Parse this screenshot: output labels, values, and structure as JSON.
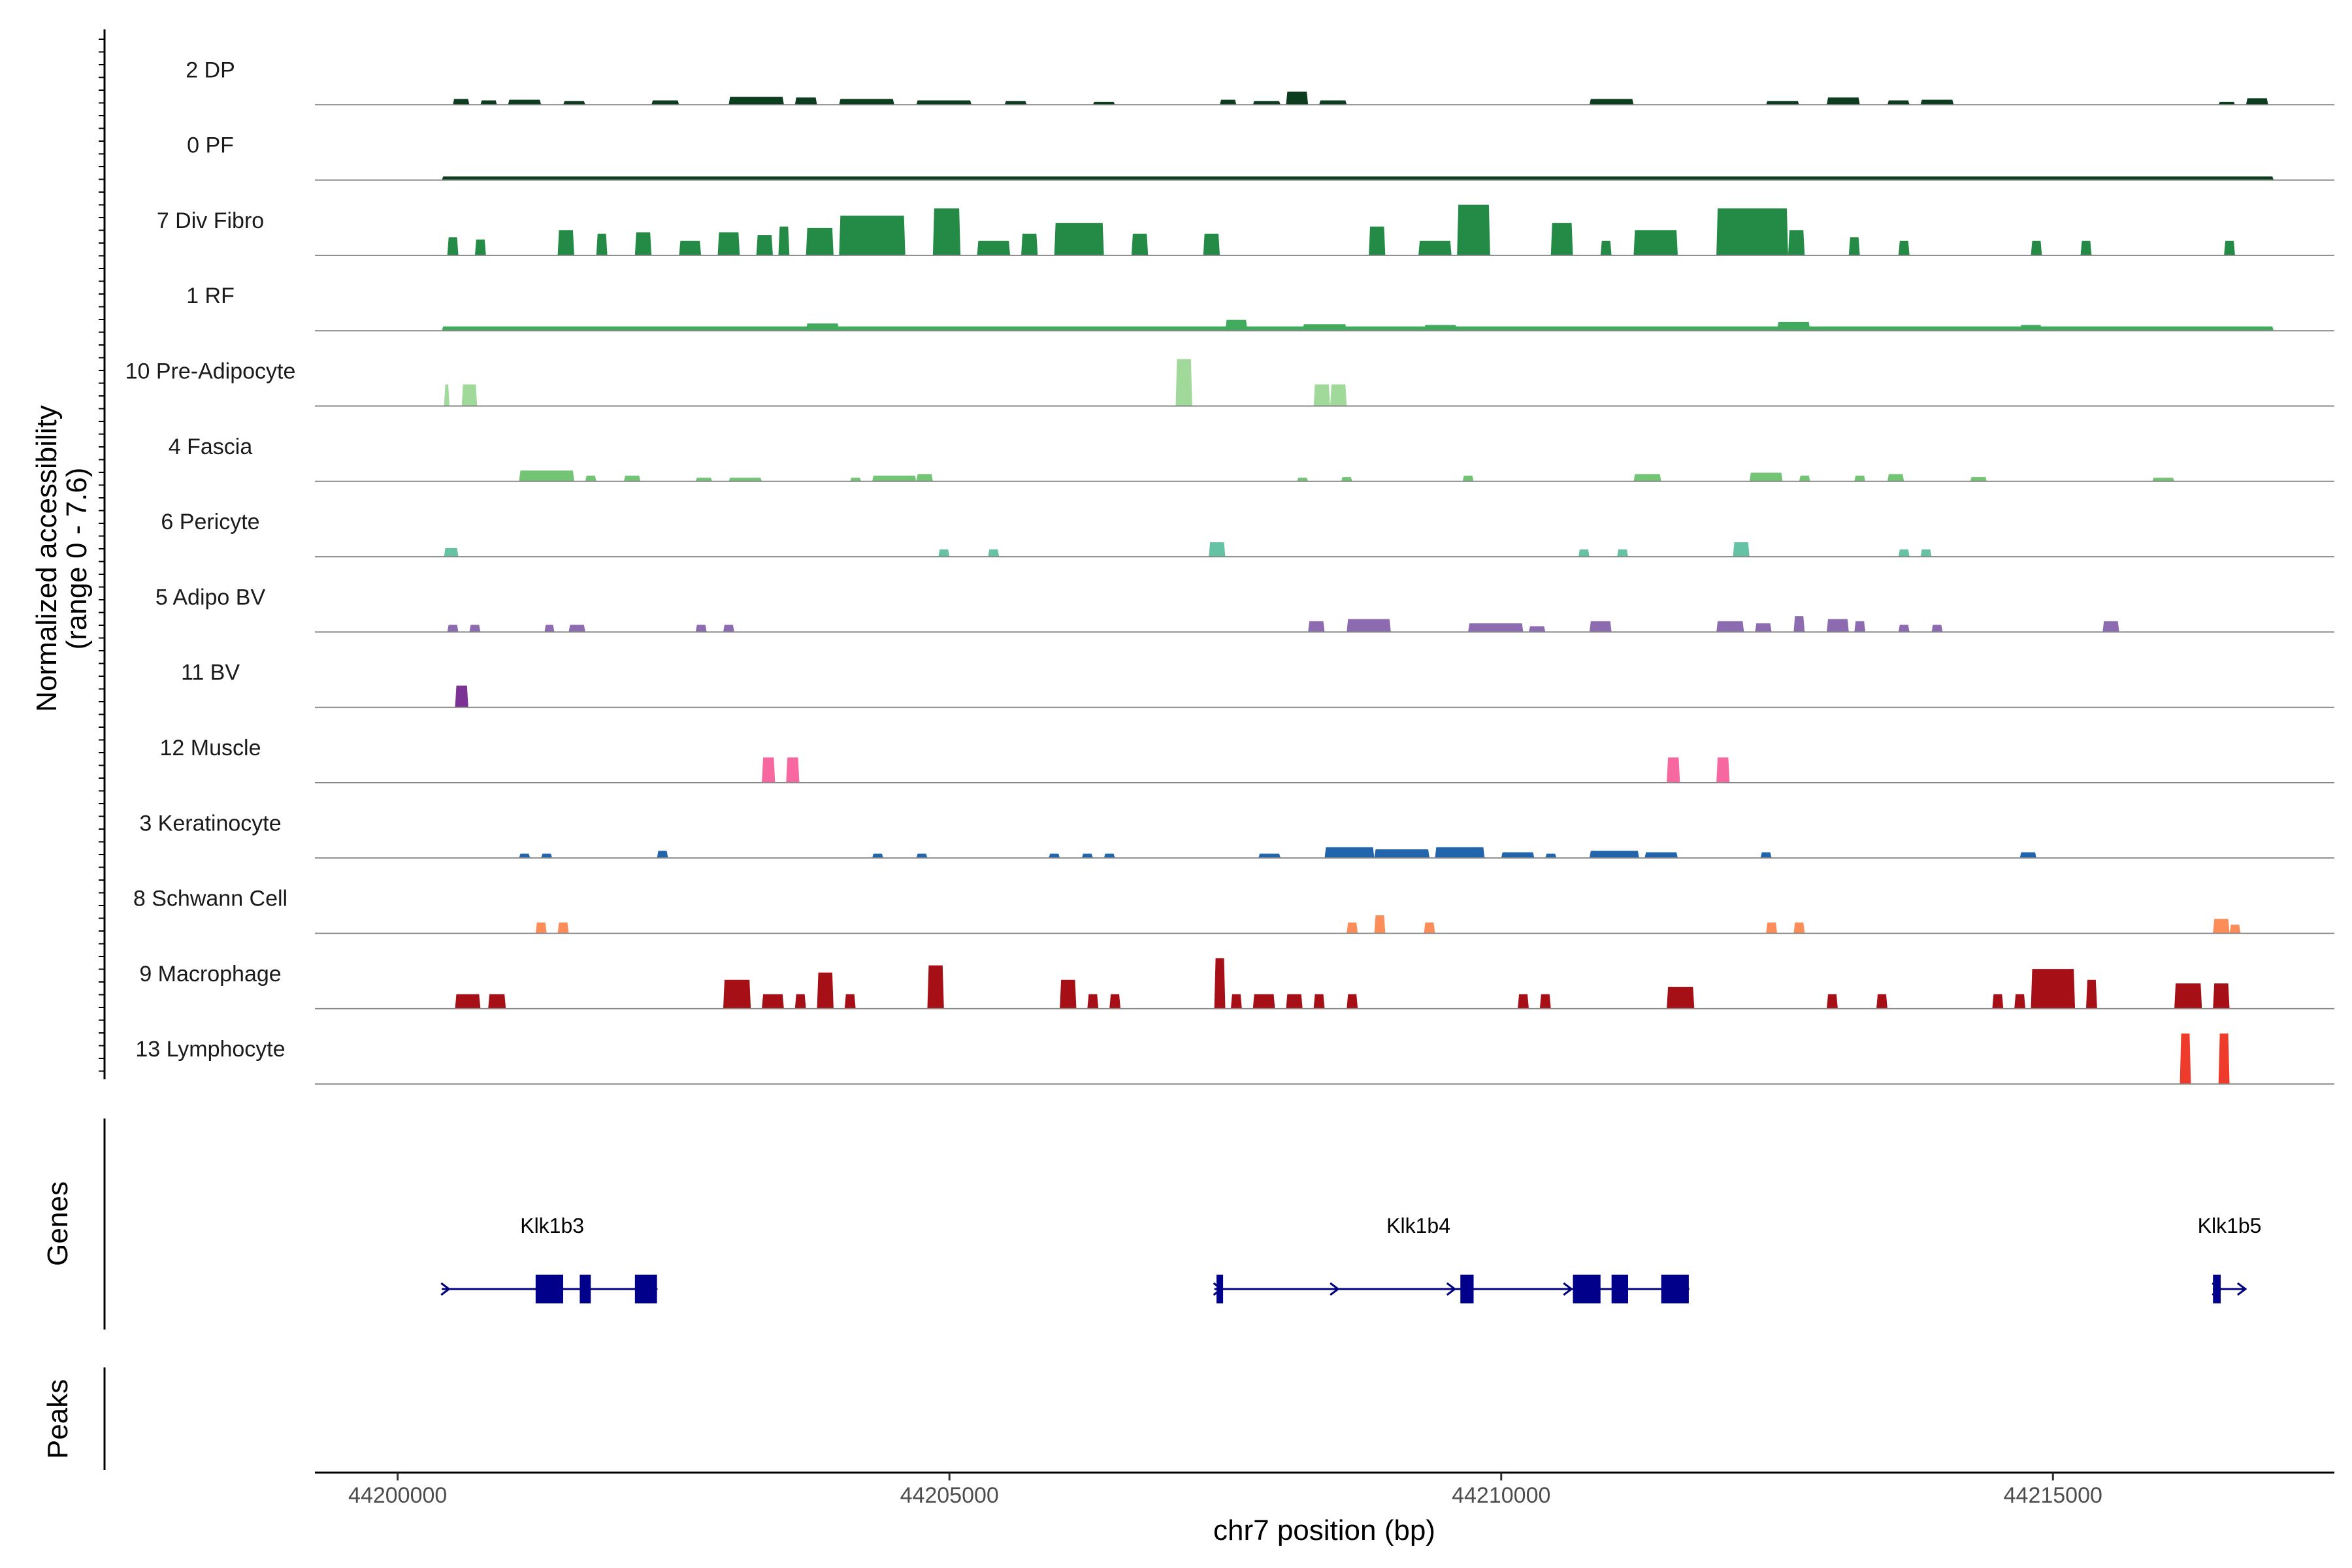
{
  "chart_data": {
    "type": "area",
    "title": "",
    "xlabel": "chr7 position (bp)",
    "ylabel_line1": "Normalized accessibility",
    "ylabel_line2": "(range 0 - 7.6)",
    "y_range": [
      0,
      7.6
    ],
    "x_range": [
      44199250,
      44217550
    ],
    "x_ticks": [
      44200000,
      44205000,
      44210000,
      44215000
    ],
    "x_tick_labels": [
      "44200000",
      "44205000",
      "44210000",
      "44215000"
    ],
    "panel_labels": {
      "genes": "Genes",
      "peaks": "Peaks"
    },
    "tracks": [
      {
        "name": "2 DP",
        "color": "#0b3d1e",
        "peaks": [
          [
            44200500,
            44200650,
            0.8
          ],
          [
            44200750,
            44200900,
            0.6
          ],
          [
            44201000,
            44201300,
            0.7
          ],
          [
            44201500,
            44201700,
            0.5
          ],
          [
            44202300,
            44202550,
            0.6
          ],
          [
            44203000,
            44203500,
            1.1
          ],
          [
            44203600,
            44203800,
            1.0
          ],
          [
            44204000,
            44204500,
            0.8
          ],
          [
            44204700,
            44205200,
            0.6
          ],
          [
            44205500,
            44205700,
            0.5
          ],
          [
            44206300,
            44206500,
            0.4
          ],
          [
            44207450,
            44207600,
            0.7
          ],
          [
            44207750,
            44208000,
            0.5
          ],
          [
            44208050,
            44208250,
            1.8
          ],
          [
            44208350,
            44208600,
            0.6
          ],
          [
            44210800,
            44211200,
            0.8
          ],
          [
            44212400,
            44212700,
            0.5
          ],
          [
            44212950,
            44213250,
            1.0
          ],
          [
            44213500,
            44213700,
            0.6
          ],
          [
            44213800,
            44214100,
            0.7
          ],
          [
            44216500,
            44216650,
            0.4
          ],
          [
            44216750,
            44216950,
            0.9
          ]
        ]
      },
      {
        "name": "0 PF",
        "color": "#0b3d1e",
        "peaks": [
          [
            44200400,
            44217000,
            0.5
          ]
        ]
      },
      {
        "name": "7 Div Fibro",
        "color": "#238b45",
        "peaks": [
          [
            44200450,
            44200550,
            2.5
          ],
          [
            44200700,
            44200800,
            2.2
          ],
          [
            44201450,
            44201600,
            3.5
          ],
          [
            44201800,
            44201900,
            3.0
          ],
          [
            44202150,
            44202300,
            3.2
          ],
          [
            44202550,
            44202750,
            2.0
          ],
          [
            44202900,
            44203100,
            3.2
          ],
          [
            44203250,
            44203400,
            2.8
          ],
          [
            44203450,
            44203550,
            4.0
          ],
          [
            44203700,
            44203950,
            3.8
          ],
          [
            44204000,
            44204600,
            5.5
          ],
          [
            44204850,
            44205100,
            6.5
          ],
          [
            44205250,
            44205550,
            2.0
          ],
          [
            44205650,
            44205800,
            3.0
          ],
          [
            44205950,
            44206400,
            4.5
          ],
          [
            44206650,
            44206800,
            3.0
          ],
          [
            44207300,
            44207450,
            3.0
          ],
          [
            44208800,
            44208950,
            4.0
          ],
          [
            44209250,
            44209550,
            2.0
          ],
          [
            44209600,
            44209900,
            7.0
          ],
          [
            44210450,
            44210650,
            4.5
          ],
          [
            44210900,
            44211000,
            2.0
          ],
          [
            44211200,
            44211600,
            3.5
          ],
          [
            44211950,
            44212600,
            6.5
          ],
          [
            44212600,
            44212750,
            3.5
          ],
          [
            44213150,
            44213250,
            2.5
          ],
          [
            44213600,
            44213700,
            2.0
          ],
          [
            44214800,
            44214900,
            2.0
          ],
          [
            44215250,
            44215350,
            2.0
          ],
          [
            44216550,
            44216650,
            2.0
          ]
        ]
      },
      {
        "name": "1 RF",
        "color": "#41ab5d",
        "peaks": [
          [
            44200400,
            44217000,
            0.6
          ],
          [
            44203700,
            44204000,
            1.0
          ],
          [
            44207500,
            44207700,
            1.5
          ],
          [
            44208200,
            44208600,
            0.9
          ],
          [
            44209300,
            44209600,
            0.8
          ],
          [
            44212500,
            44212800,
            1.2
          ],
          [
            44214700,
            44214900,
            0.8
          ]
        ]
      },
      {
        "name": "10 Pre-Adipocyte",
        "color": "#a1d99b",
        "peaks": [
          [
            44200420,
            44200470,
            3.0
          ],
          [
            44200580,
            44200720,
            3.0
          ],
          [
            44207050,
            44207200,
            6.5
          ],
          [
            44208300,
            44208450,
            3.0
          ],
          [
            44208450,
            44208600,
            3.0
          ]
        ]
      },
      {
        "name": "4 Fascia",
        "color": "#74c476",
        "peaks": [
          [
            44201100,
            44201600,
            1.5
          ],
          [
            44201700,
            44201800,
            0.8
          ],
          [
            44202050,
            44202200,
            0.8
          ],
          [
            44202700,
            44202850,
            0.5
          ],
          [
            44203000,
            44203300,
            0.5
          ],
          [
            44204100,
            44204200,
            0.5
          ],
          [
            44204300,
            44204700,
            0.8
          ],
          [
            44204700,
            44204850,
            1.0
          ],
          [
            44208150,
            44208250,
            0.5
          ],
          [
            44208550,
            44208650,
            0.6
          ],
          [
            44209650,
            44209750,
            0.8
          ],
          [
            44211200,
            44211450,
            1.0
          ],
          [
            44212250,
            44212550,
            1.2
          ],
          [
            44212700,
            44212800,
            0.8
          ],
          [
            44213200,
            44213300,
            0.8
          ],
          [
            44213500,
            44213650,
            1.0
          ],
          [
            44214250,
            44214400,
            0.6
          ],
          [
            44215900,
            44216100,
            0.5
          ]
        ]
      },
      {
        "name": "6 Pericyte",
        "color": "#66c2a4",
        "peaks": [
          [
            44200420,
            44200550,
            1.2
          ],
          [
            44204900,
            44205000,
            1.0
          ],
          [
            44205350,
            44205450,
            1.0
          ],
          [
            44207350,
            44207500,
            2.0
          ],
          [
            44210700,
            44210800,
            1.0
          ],
          [
            44211050,
            44211150,
            1.0
          ],
          [
            44212100,
            44212250,
            2.0
          ],
          [
            44213600,
            44213700,
            1.0
          ],
          [
            44213800,
            44213900,
            1.0
          ]
        ]
      },
      {
        "name": "5 Adipo BV",
        "color": "#8c6bb1",
        "peaks": [
          [
            44200450,
            44200550,
            1.0
          ],
          [
            44200650,
            44200750,
            1.0
          ],
          [
            44201330,
            44201420,
            1.0
          ],
          [
            44201550,
            44201700,
            1.0
          ],
          [
            44202700,
            44202800,
            1.0
          ],
          [
            44202950,
            44203050,
            1.0
          ],
          [
            44208250,
            44208400,
            1.5
          ],
          [
            44208600,
            44209000,
            1.8
          ],
          [
            44209700,
            44210200,
            1.2
          ],
          [
            44210250,
            44210400,
            0.8
          ],
          [
            44210800,
            44211000,
            1.5
          ],
          [
            44211950,
            44212200,
            1.5
          ],
          [
            44212300,
            44212450,
            1.2
          ],
          [
            44212650,
            44212750,
            2.2
          ],
          [
            44212950,
            44213150,
            1.8
          ],
          [
            44213200,
            44213300,
            1.5
          ],
          [
            44213600,
            44213700,
            1.0
          ],
          [
            44213900,
            44214000,
            1.0
          ],
          [
            44215450,
            44215600,
            1.5
          ]
        ]
      },
      {
        "name": "11 BV",
        "color": "#7b3294",
        "peaks": [
          [
            44200520,
            44200640,
            3.0
          ]
        ]
      },
      {
        "name": "12 Muscle",
        "color": "#f768a1",
        "peaks": [
          [
            44203300,
            44203420,
            3.5
          ],
          [
            44203520,
            44203640,
            3.5
          ],
          [
            44211500,
            44211620,
            3.5
          ],
          [
            44211950,
            44212070,
            3.5
          ]
        ]
      },
      {
        "name": "3 Keratinocyte",
        "color": "#2166ac",
        "peaks": [
          [
            44201100,
            44201200,
            0.6
          ],
          [
            44201300,
            44201400,
            0.6
          ],
          [
            44202350,
            44202450,
            1.0
          ],
          [
            44204300,
            44204400,
            0.6
          ],
          [
            44204700,
            44204800,
            0.6
          ],
          [
            44205900,
            44206000,
            0.6
          ],
          [
            44206200,
            44206300,
            0.6
          ],
          [
            44206400,
            44206500,
            0.6
          ],
          [
            44207800,
            44208000,
            0.6
          ],
          [
            44208400,
            44208850,
            1.5
          ],
          [
            44208850,
            44209350,
            1.2
          ],
          [
            44209400,
            44209850,
            1.5
          ],
          [
            44210000,
            44210300,
            0.8
          ],
          [
            44210400,
            44210500,
            0.6
          ],
          [
            44210800,
            44211250,
            1.0
          ],
          [
            44211300,
            44211600,
            0.8
          ],
          [
            44212350,
            44212450,
            0.8
          ],
          [
            44214700,
            44214850,
            0.8
          ]
        ]
      },
      {
        "name": "8 Schwann Cell",
        "color": "#fc8d59",
        "peaks": [
          [
            44201250,
            44201350,
            1.5
          ],
          [
            44201450,
            44201550,
            1.5
          ],
          [
            44208600,
            44208700,
            1.5
          ],
          [
            44208850,
            44208950,
            2.5
          ],
          [
            44209300,
            44209400,
            1.5
          ],
          [
            44212400,
            44212500,
            1.5
          ],
          [
            44212650,
            44212750,
            1.5
          ],
          [
            44216450,
            44216600,
            2.0
          ],
          [
            44216600,
            44216700,
            1.2
          ]
        ]
      },
      {
        "name": "9 Macrophage",
        "color": "#a50f15",
        "peaks": [
          [
            44200520,
            44200750,
            2.0
          ],
          [
            44200820,
            44200980,
            2.0
          ],
          [
            44202950,
            44203200,
            4.0
          ],
          [
            44203300,
            44203500,
            2.0
          ],
          [
            44203600,
            44203700,
            2.0
          ],
          [
            44203800,
            44203950,
            5.0
          ],
          [
            44204050,
            44204150,
            2.0
          ],
          [
            44204800,
            44204950,
            6.0
          ],
          [
            44206000,
            44206150,
            4.0
          ],
          [
            44206250,
            44206350,
            2.0
          ],
          [
            44206450,
            44206550,
            2.0
          ],
          [
            44207400,
            44207500,
            7.0
          ],
          [
            44207550,
            44207650,
            2.0
          ],
          [
            44207750,
            44207950,
            2.0
          ],
          [
            44208050,
            44208200,
            2.0
          ],
          [
            44208300,
            44208400,
            2.0
          ],
          [
            44208600,
            44208700,
            2.0
          ],
          [
            44210150,
            44210250,
            2.0
          ],
          [
            44210350,
            44210450,
            2.0
          ],
          [
            44211500,
            44211750,
            3.0
          ],
          [
            44212950,
            44213050,
            2.0
          ],
          [
            44213400,
            44213500,
            2.0
          ],
          [
            44214450,
            44214550,
            2.0
          ],
          [
            44214650,
            44214750,
            2.0
          ],
          [
            44214800,
            44215200,
            5.5
          ],
          [
            44215300,
            44215400,
            4.0
          ],
          [
            44216100,
            44216350,
            3.5
          ],
          [
            44216450,
            44216600,
            3.5
          ]
        ]
      },
      {
        "name": "13 Lymphocyte",
        "color": "#ef3b2c",
        "peaks": [
          [
            44216150,
            44216250,
            7.0
          ],
          [
            44216500,
            44216600,
            7.0
          ]
        ]
      }
    ],
    "genes": [
      {
        "name": "Klk1b3",
        "label_x": 44201400,
        "start": 44200400,
        "end": 44202350,
        "exons": [
          [
            44201250,
            44201500
          ],
          [
            44201650,
            44201750
          ],
          [
            44202150,
            44202350
          ]
        ]
      },
      {
        "name": "Klk1b4",
        "label_x": 44209250,
        "start": 44207400,
        "end": 44211700,
        "exons": [
          [
            44207420,
            44207480
          ],
          [
            44209630,
            44209750
          ],
          [
            44210650,
            44210900
          ],
          [
            44211000,
            44211150
          ],
          [
            44211450,
            44211700
          ]
        ]
      },
      {
        "name": "Klk1b5",
        "label_x": 44216600,
        "start": 44216450,
        "end": 44216750,
        "exons": [
          [
            44216450,
            44216520
          ]
        ]
      }
    ]
  }
}
